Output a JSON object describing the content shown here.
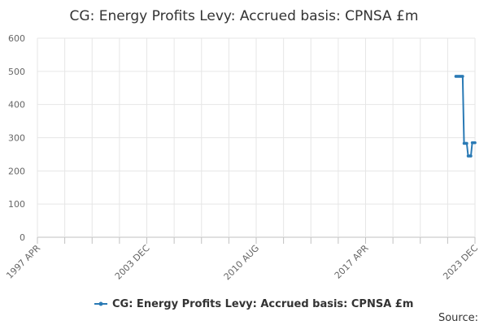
{
  "chart_data": {
    "type": "line",
    "title": "CG: Energy Profits Levy: Accrued basis: CPNSA £m",
    "xlabel": "",
    "ylabel": "",
    "ylim": [
      0,
      600
    ],
    "yticks": [
      0,
      100,
      200,
      300,
      400,
      500,
      600
    ],
    "x_tick_labels": [
      "1997 APR",
      "2003 DEC",
      "2010 AUG",
      "2017 APR",
      "2023 DEC"
    ],
    "grid": true,
    "legend": "bottom-center",
    "color": "#2a7ab5",
    "series": [
      {
        "name": "CG: Energy Profits Levy: Accrued basis: CPNSA £m",
        "x": [
          "2022 OCT",
          "2022 NOV",
          "2022 DEC",
          "2023 JAN",
          "2023 FEB",
          "2023 MAR",
          "2023 APR",
          "2023 MAY",
          "2023 JUN",
          "2023 JUL",
          "2023 AUG",
          "2023 SEP",
          "2023 OCT",
          "2023 NOV",
          "2023 DEC"
        ],
        "values": [
          485,
          485,
          485,
          485,
          485,
          485,
          283,
          283,
          283,
          245,
          245,
          245,
          285,
          285,
          285
        ]
      }
    ]
  },
  "source_label": "Source:"
}
